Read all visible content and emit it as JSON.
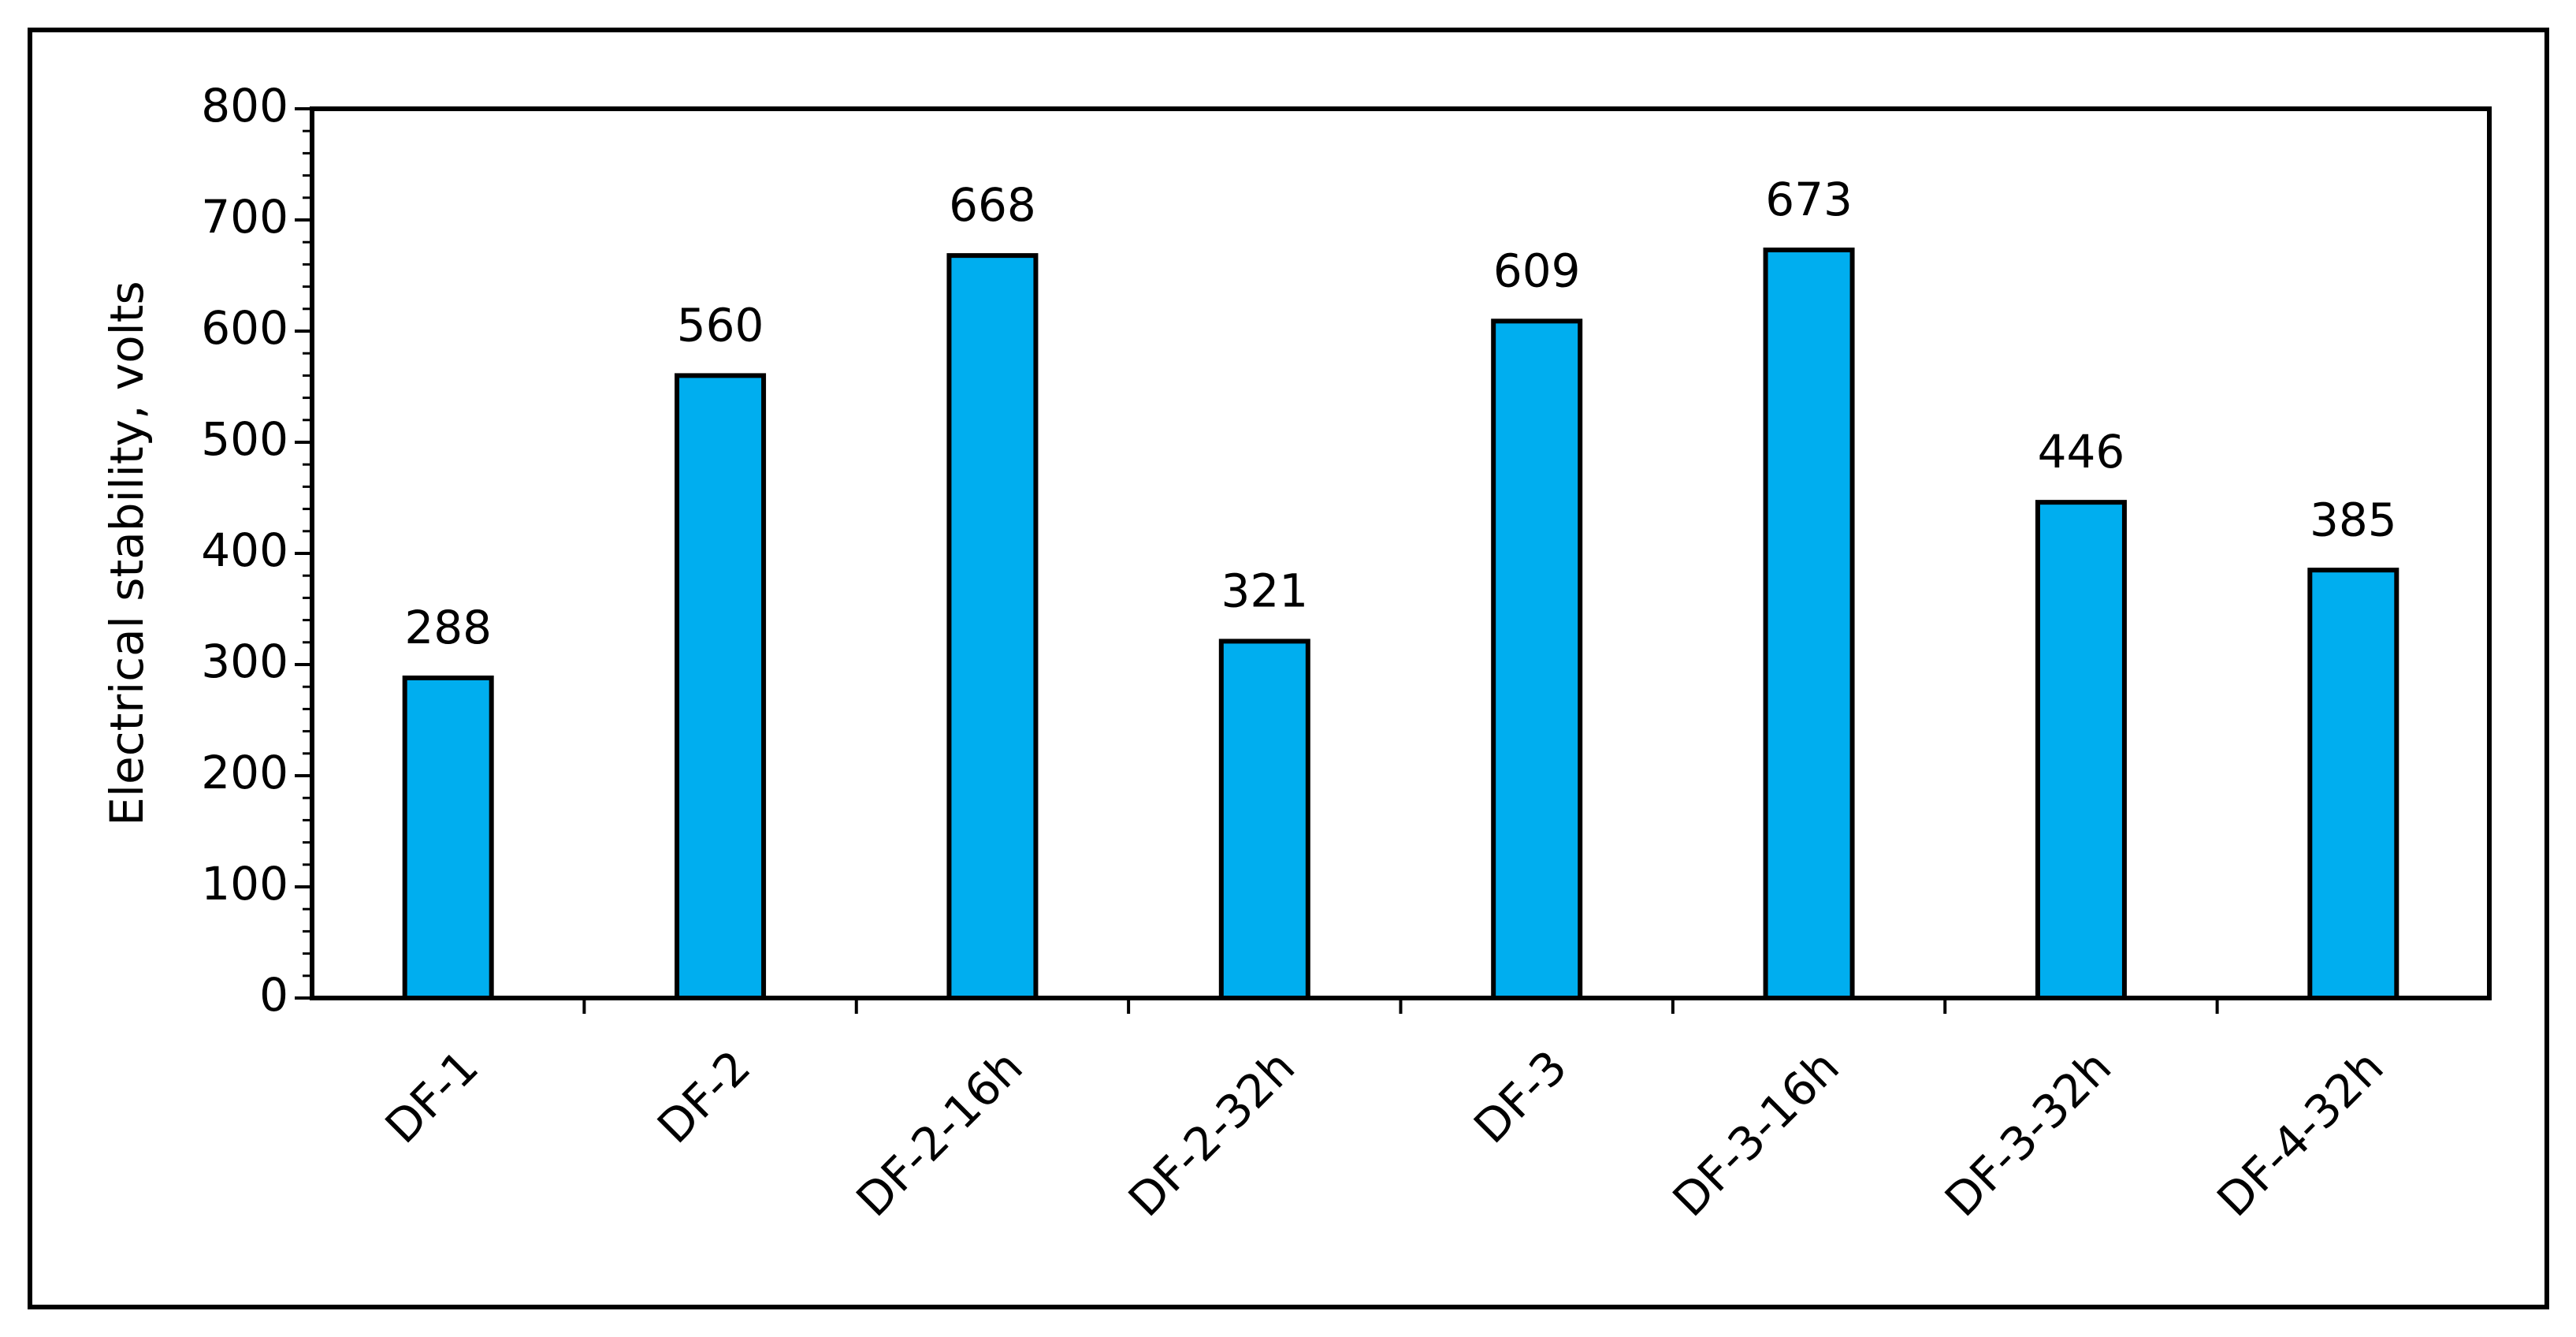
{
  "chart_data": {
    "type": "bar",
    "y_label": "Electrical stability, volts",
    "categories": [
      "DF-1",
      "DF-2",
      "DF-2-16h",
      "DF-2-32h",
      "DF-3",
      "DF-3-16h",
      "DF-3-32h",
      "DF-4-32h"
    ],
    "values": [
      288,
      560,
      668,
      321,
      609,
      673,
      446,
      385
    ],
    "color": "#00aeef",
    "ylim": [
      0,
      800
    ],
    "yticks": [
      0,
      100,
      200,
      300,
      400,
      500,
      600,
      700,
      800
    ],
    "grid": false
  }
}
